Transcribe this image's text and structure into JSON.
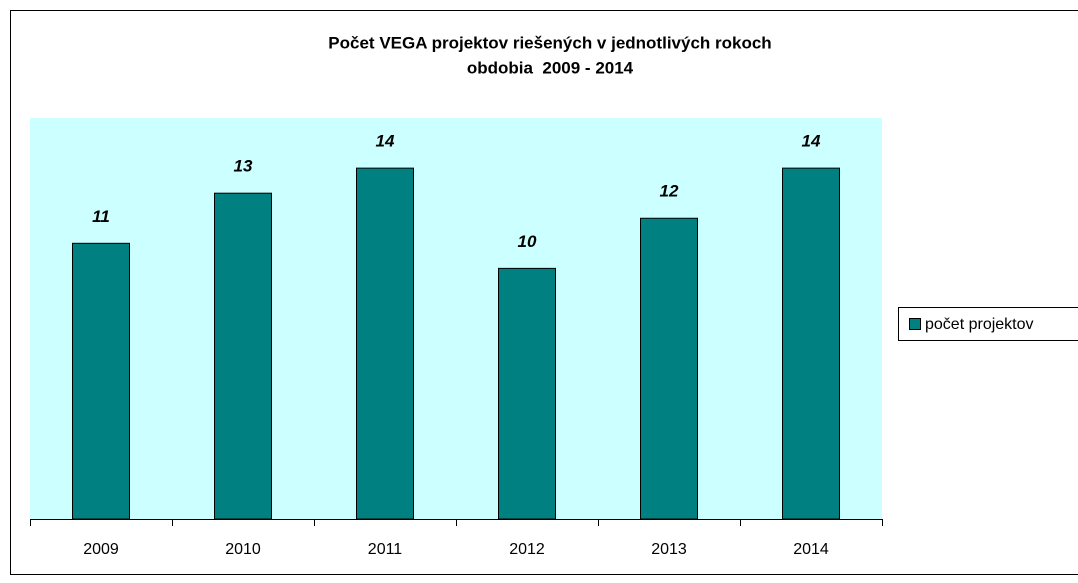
{
  "chart_data": {
    "type": "bar",
    "title": [
      "Počet VEGA projektov riešených v jednotlivých rokoch",
      "obdobia  2009 - 2014"
    ],
    "categories": [
      "2009",
      "2010",
      "2011",
      "2012",
      "2013",
      "2014"
    ],
    "series": [
      {
        "name": "počet projektov",
        "color": "#008080",
        "values": [
          11,
          13,
          14,
          10,
          12,
          14
        ]
      }
    ],
    "ylim": [
      0,
      16
    ],
    "legend": "right",
    "plot_background": "#ccffff"
  }
}
